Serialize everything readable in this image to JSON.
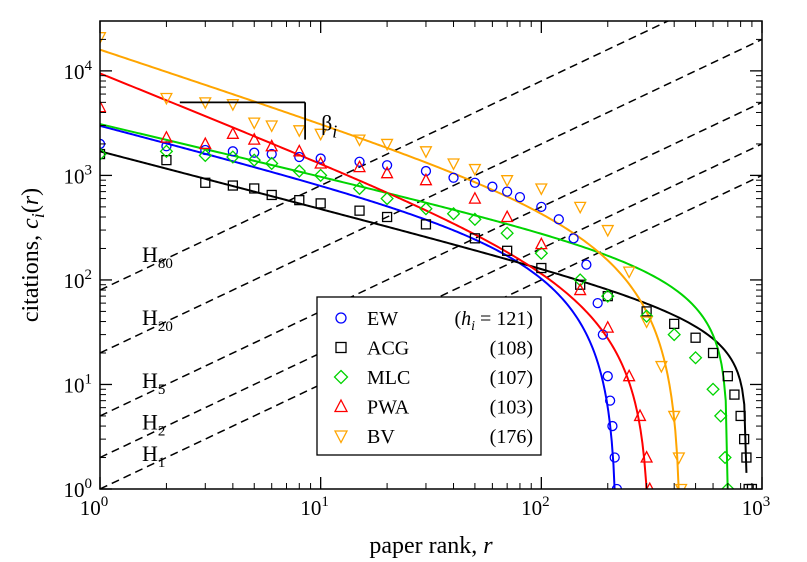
{
  "chart_data": {
    "type": "scatter",
    "xscale": "log",
    "yscale": "log",
    "xlim": [
      1,
      1000
    ],
    "ylim": [
      1,
      30000
    ],
    "grid": false,
    "legend_position": "center-right",
    "xlabel": "paper rank, r",
    "ylabel": "citations, c_i(r)",
    "x_ticks": [
      {
        "value": 1,
        "base": "10",
        "exp": "0"
      },
      {
        "value": 10,
        "base": "10",
        "exp": "1"
      },
      {
        "value": 100,
        "base": "10",
        "exp": "2"
      },
      {
        "value": 1000,
        "base": "10",
        "exp": "3"
      }
    ],
    "y_ticks": [
      {
        "value": 1,
        "base": "10",
        "exp": "0"
      },
      {
        "value": 10,
        "base": "10",
        "exp": "1"
      },
      {
        "value": 100,
        "base": "10",
        "exp": "2"
      },
      {
        "value": 1000,
        "base": "10",
        "exp": "3"
      },
      {
        "value": 10000,
        "base": "10",
        "exp": "4"
      }
    ],
    "legend_header": "(h_i = 121)",
    "series": [
      {
        "name": "EW",
        "h": "121",
        "marker": "circle",
        "color": "#0000ff",
        "beta": 0.55,
        "fit_c0": 3000,
        "fit_N": 220,
        "fit_exp": 1.4,
        "points": [
          [
            1,
            2000
          ],
          [
            2,
            1900
          ],
          [
            3,
            1750
          ],
          [
            4,
            1700
          ],
          [
            5,
            1650
          ],
          [
            6,
            1600
          ],
          [
            8,
            1500
          ],
          [
            10,
            1450
          ],
          [
            15,
            1350
          ],
          [
            20,
            1250
          ],
          [
            30,
            1100
          ],
          [
            40,
            950
          ],
          [
            50,
            850
          ],
          [
            60,
            780
          ],
          [
            70,
            700
          ],
          [
            80,
            620
          ],
          [
            100,
            500
          ],
          [
            120,
            380
          ],
          [
            140,
            250
          ],
          [
            160,
            140
          ],
          [
            180,
            60
          ],
          [
            190,
            30
          ],
          [
            200,
            12
          ],
          [
            205,
            7
          ],
          [
            210,
            4
          ],
          [
            215,
            2
          ],
          [
            220,
            1
          ]
        ]
      },
      {
        "name": "ACG",
        "h": "108",
        "marker": "square",
        "color": "#000000",
        "beta": 0.55,
        "fit_c0": 1700,
        "fit_N": 850,
        "fit_exp": 0.5,
        "points": [
          [
            1,
            1600
          ],
          [
            2,
            1400
          ],
          [
            3,
            850
          ],
          [
            4,
            800
          ],
          [
            5,
            750
          ],
          [
            6,
            650
          ],
          [
            8,
            580
          ],
          [
            10,
            540
          ],
          [
            15,
            460
          ],
          [
            20,
            400
          ],
          [
            30,
            340
          ],
          [
            50,
            250
          ],
          [
            70,
            190
          ],
          [
            100,
            130
          ],
          [
            150,
            90
          ],
          [
            200,
            70
          ],
          [
            300,
            50
          ],
          [
            400,
            38
          ],
          [
            500,
            28
          ],
          [
            600,
            20
          ],
          [
            700,
            12
          ],
          [
            750,
            8
          ],
          [
            800,
            5
          ],
          [
            830,
            3
          ],
          [
            850,
            2
          ],
          [
            870,
            1
          ],
          [
            900,
            1
          ]
        ]
      },
      {
        "name": "MLC",
        "h": "107",
        "marker": "diamond",
        "color": "#00d400",
        "beta": 0.5,
        "fit_c0": 3100,
        "fit_N": 700,
        "fit_exp": 0.75,
        "points": [
          [
            1,
            1600
          ],
          [
            2,
            1700
          ],
          [
            3,
            1550
          ],
          [
            4,
            1500
          ],
          [
            5,
            1400
          ],
          [
            6,
            1300
          ],
          [
            8,
            1100
          ],
          [
            10,
            1000
          ],
          [
            15,
            750
          ],
          [
            20,
            600
          ],
          [
            30,
            480
          ],
          [
            40,
            430
          ],
          [
            50,
            380
          ],
          [
            70,
            280
          ],
          [
            100,
            180
          ],
          [
            150,
            100
          ],
          [
            200,
            70
          ],
          [
            300,
            45
          ],
          [
            400,
            30
          ],
          [
            500,
            18
          ],
          [
            600,
            9
          ],
          [
            650,
            5
          ],
          [
            680,
            2
          ],
          [
            700,
            1
          ]
        ]
      },
      {
        "name": "PWA",
        "h": "103",
        "marker": "triangle-up",
        "color": "#ff0000",
        "beta": 0.85,
        "fit_c0": 9500,
        "fit_N": 310,
        "fit_exp": 1.3,
        "points": [
          [
            1,
            4500
          ],
          [
            2,
            2300
          ],
          [
            3,
            2000
          ],
          [
            4,
            2500
          ],
          [
            5,
            2200
          ],
          [
            6,
            1900
          ],
          [
            8,
            1700
          ],
          [
            10,
            1300
          ],
          [
            15,
            1200
          ],
          [
            20,
            1050
          ],
          [
            30,
            900
          ],
          [
            50,
            600
          ],
          [
            70,
            400
          ],
          [
            100,
            220
          ],
          [
            150,
            80
          ],
          [
            200,
            35
          ],
          [
            250,
            12
          ],
          [
            280,
            5
          ],
          [
            300,
            2
          ],
          [
            310,
            1
          ]
        ]
      },
      {
        "name": "BV",
        "h": "176",
        "marker": "triangle-down",
        "color": "#ffa500",
        "beta": 0.7,
        "fit_c0": 16000,
        "fit_N": 430,
        "fit_exp": 1.5,
        "points": [
          [
            1,
            21000
          ],
          [
            2,
            5500
          ],
          [
            3,
            5000
          ],
          [
            4,
            4800
          ],
          [
            5,
            3200
          ],
          [
            6,
            3000
          ],
          [
            8,
            2700
          ],
          [
            10,
            2500
          ],
          [
            15,
            2200
          ],
          [
            20,
            2000
          ],
          [
            30,
            1700
          ],
          [
            40,
            1300
          ],
          [
            50,
            1150
          ],
          [
            70,
            900
          ],
          [
            100,
            750
          ],
          [
            150,
            500
          ],
          [
            200,
            300
          ],
          [
            250,
            120
          ],
          [
            300,
            40
          ],
          [
            350,
            15
          ],
          [
            400,
            5
          ],
          [
            420,
            2
          ],
          [
            430,
            1
          ]
        ]
      }
    ],
    "h_lines": [
      {
        "label_main": "H",
        "label_sub": "80",
        "multiplier": 80
      },
      {
        "label_main": "H",
        "label_sub": "20",
        "multiplier": 20
      },
      {
        "label_main": "H",
        "label_sub": "5",
        "multiplier": 5
      },
      {
        "label_main": "H",
        "label_sub": "2",
        "multiplier": 2
      },
      {
        "label_main": "H",
        "label_sub": "1",
        "multiplier": 1
      }
    ],
    "beta_label": "β_i",
    "slope_bracket": {
      "x_start": 2.3,
      "x_end": 8.5,
      "y_top": 5000,
      "y_bottom": 2200
    }
  }
}
